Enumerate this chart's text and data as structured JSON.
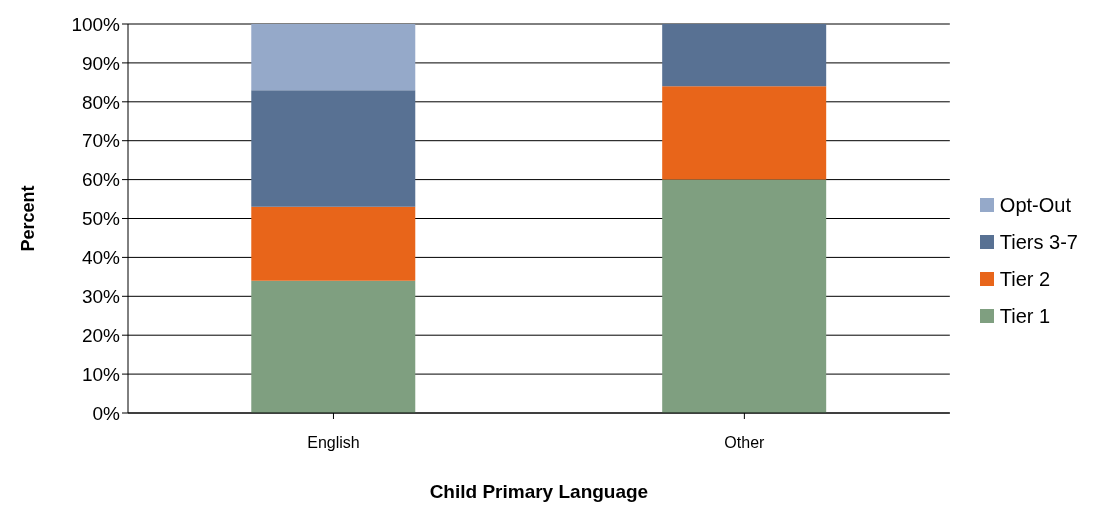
{
  "chart_data": {
    "type": "bar",
    "stacked": true,
    "xlabel": "Child Primary Language",
    "ylabel": "Percent",
    "categories": [
      "English",
      "Other"
    ],
    "series": [
      {
        "name": "Tier 1",
        "color": "#7f9f80",
        "values": [
          34,
          60
        ]
      },
      {
        "name": "Tier 2",
        "color": "#e8651a",
        "values": [
          19,
          24
        ]
      },
      {
        "name": "Tiers 3-7",
        "color": "#587193",
        "values": [
          30,
          16
        ]
      },
      {
        "name": "Opt-Out",
        "color": "#95a9c9",
        "values": [
          17,
          0
        ]
      }
    ],
    "ylim": [
      0,
      100
    ],
    "yticks": [
      {
        "value": 0,
        "label": "0%"
      },
      {
        "value": 10,
        "label": "10%"
      },
      {
        "value": 20,
        "label": "20%"
      },
      {
        "value": 30,
        "label": "30%"
      },
      {
        "value": 40,
        "label": "40%"
      },
      {
        "value": 50,
        "label": "50%"
      },
      {
        "value": 60,
        "label": "60%"
      },
      {
        "value": 70,
        "label": "70%"
      },
      {
        "value": 80,
        "label": "80%"
      },
      {
        "value": 90,
        "label": "90%"
      },
      {
        "value": 100,
        "label": "100%"
      }
    ],
    "grid": "y",
    "legend": "right"
  }
}
